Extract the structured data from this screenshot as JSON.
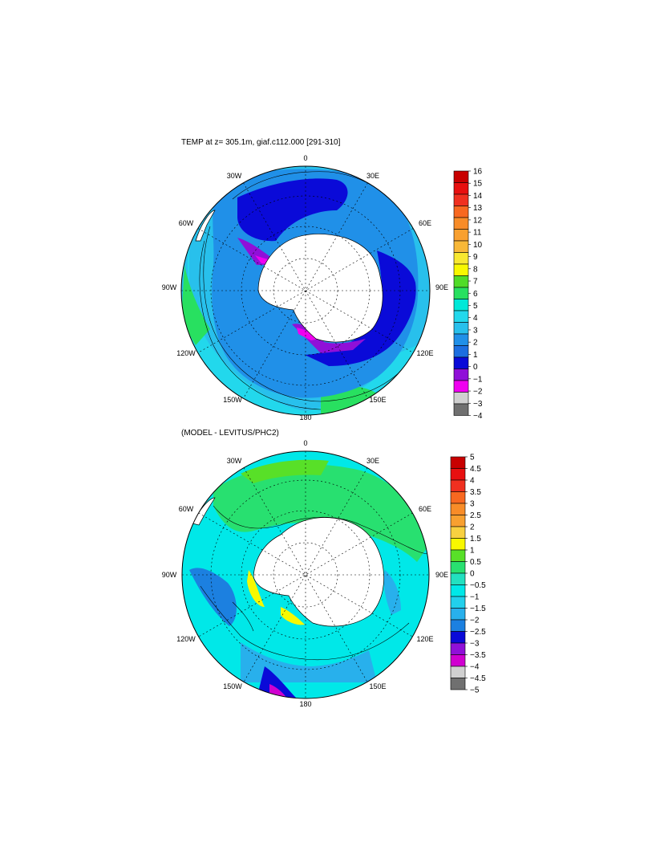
{
  "maps": [
    {
      "title": "TEMP at z= 305.1m, giaf.c112.000 [291-310]",
      "lon_labels": {
        "top": "0",
        "tr": "30E",
        "rt": "60E",
        "right": "90E",
        "rb": "120E",
        "br": "150E",
        "bottom": "180",
        "bl": "150W",
        "lb": "120W",
        "left": "90W",
        "lt": "60W",
        "tl": "30W"
      },
      "colorbar": {
        "labels": [
          "16",
          "15",
          "14",
          "13",
          "12",
          "11",
          "10",
          "9",
          "8",
          "7",
          "6",
          "5",
          "4",
          "3",
          "2",
          "1",
          "0",
          "−1",
          "−2",
          "−3",
          "−4"
        ],
        "colors": [
          "#c80000",
          "#e81010",
          "#f03020",
          "#f86820",
          "#f88c28",
          "#f8a030",
          "#f8b838",
          "#f8e830",
          "#f8f800",
          "#50dc28",
          "#28e060",
          "#00e8d8",
          "#22d8ec",
          "#28c0ec",
          "#2090e8",
          "#1c6ee0",
          "#0a0ad8",
          "#9010d8",
          "#f000f0",
          "#d0d0d0",
          "#707070"
        ]
      }
    },
    {
      "title": "(MODEL - LEVITUS/PHC2)",
      "lon_labels": {
        "top": "0",
        "tr": "30E",
        "rt": "60E",
        "right": "90E",
        "rb": "120E",
        "br": "150E",
        "bottom": "180",
        "bl": "150W",
        "lb": "120W",
        "left": "90W",
        "lt": "60W",
        "tl": "30W"
      },
      "colorbar": {
        "labels": [
          "5",
          "4.5",
          "4",
          "3.5",
          "3",
          "2.5",
          "2",
          "1.5",
          "1",
          "0.5",
          "0",
          "−0.5",
          "−1",
          "−1.5",
          "−2",
          "−2.5",
          "−3",
          "−3.5",
          "−4",
          "−4.5",
          "−5"
        ],
        "colors": [
          "#c80000",
          "#e81010",
          "#f03020",
          "#f86820",
          "#f88c28",
          "#f8a030",
          "#f8d040",
          "#f8f800",
          "#58e028",
          "#28e070",
          "#22e0c0",
          "#00e8e8",
          "#22d0ec",
          "#28b0ec",
          "#1c80e0",
          "#0a0ad8",
          "#9010d8",
          "#d000d0",
          "#d0d0d0",
          "#707070"
        ]
      }
    }
  ]
}
